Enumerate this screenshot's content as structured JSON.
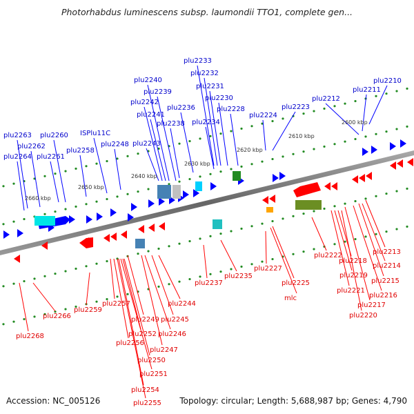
{
  "title": "Photorhabdus luminescens subsp. laumondii TTO1, complete gen...",
  "footer": {
    "accession": "Accession: NC_005126",
    "summary": "Topology: circular; Length: 5,688,987 bp; Genes: 4,790"
  },
  "colors": {
    "forward_gene": "#0000ff",
    "reverse_gene": "#ff0000",
    "backbone": "#808080",
    "tick": "#228b22",
    "forward_label": "#0000cc",
    "reverse_label": "#e00000"
  },
  "scale_ticks": [
    "2600 kbp",
    "2610 kbp",
    "2620 kbp",
    "2630 kbp",
    "2640 kbp",
    "2650 kbp",
    "2660 kbp"
  ],
  "forward_labels": [
    "plu2210",
    "plu2211",
    "plu2212",
    "plu2223",
    "plu2224",
    "plu2228",
    "plu2230",
    "plu2231",
    "plu2232",
    "plu2233",
    "plu2234",
    "plu2236",
    "plu2238",
    "plu2239",
    "plu2240",
    "plu2241",
    "plu2242",
    "plu2243",
    "plu2248",
    "ISPlu11C",
    "plu2258",
    "plu2260",
    "plu2261",
    "plu2262",
    "plu2263",
    "plu2264"
  ],
  "reverse_labels": [
    "plu2213",
    "plu2214",
    "plu2215",
    "plu2216",
    "plu2217",
    "plu2218",
    "plu2219",
    "plu2220",
    "plu2221",
    "plu2222",
    "plu2225",
    "mlc",
    "plu2227",
    "plu2235",
    "plu2237",
    "plu2244",
    "plu2245",
    "plu2246",
    "plu2247",
    "plu2249",
    "plu2250",
    "plu2251",
    "plu2252",
    "plu2254",
    "plu2255",
    "plu2256",
    "plu2257",
    "plu2259",
    "plu2266",
    "plu2268"
  ]
}
